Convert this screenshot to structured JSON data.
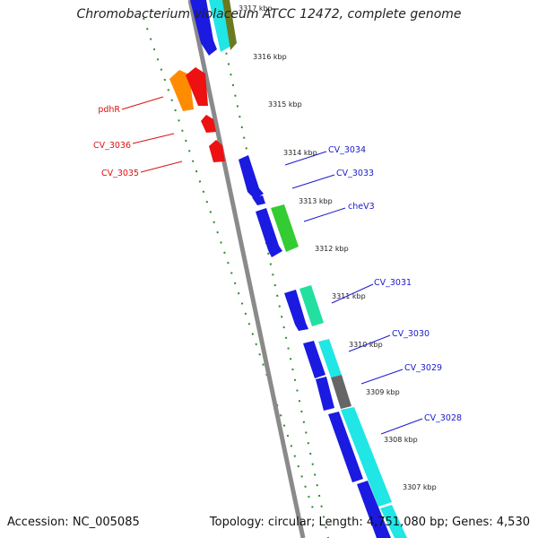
{
  "title": "Chromobacterium violaceum ATCC 12472, complete genome",
  "footer": {
    "accession": "Accession: NC_005085",
    "stats": "Topology: circular; Length: 4,751,080 bp; Genes: 4,530"
  },
  "colors": {
    "backbone": "#8a8a8a",
    "forward_label": "#1a1acc",
    "reverse_label": "#dd1111",
    "tick": "#2e8b2e"
  },
  "kbp_ticks": [
    "3317 kbp",
    "3316 kbp",
    "3315 kbp",
    "3314 kbp",
    "3313 kbp",
    "3312 kbp",
    "3311 kbp",
    "3310 kbp",
    "3309 kbp",
    "3308 kbp",
    "3307 kbp"
  ],
  "genes": [
    {
      "label": "pdhR",
      "strand": "reverse"
    },
    {
      "label": "CV_3036",
      "strand": "reverse"
    },
    {
      "label": "CV_3035",
      "strand": "reverse"
    },
    {
      "label": "CV_3034",
      "strand": "forward"
    },
    {
      "label": "CV_3033",
      "strand": "forward"
    },
    {
      "label": "cheV3",
      "strand": "forward"
    },
    {
      "label": "CV_3031",
      "strand": "forward"
    },
    {
      "label": "CV_3030",
      "strand": "forward"
    },
    {
      "label": "CV_3029",
      "strand": "forward"
    },
    {
      "label": "CV_3028",
      "strand": "forward"
    }
  ]
}
